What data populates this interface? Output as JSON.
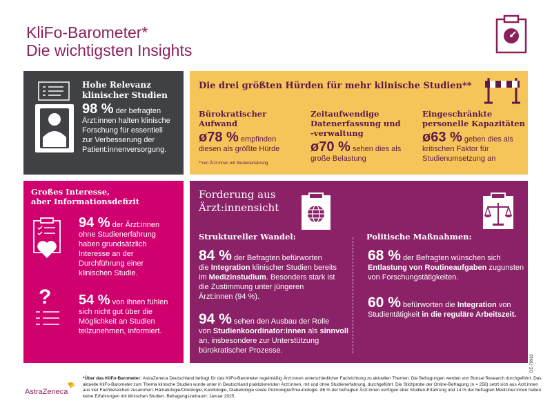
{
  "title": {
    "line1": "KliFo-Barometer*",
    "line2": "Die wichtigsten Insights"
  },
  "relevance": {
    "heading_line1": "Hohe Relevanz",
    "heading_line2": "klinischer Studien",
    "percent": "98 %",
    "text_1": "der befragten",
    "text_2": "Ärzt:innen halten klinische",
    "text_3": "Forschung für essentiell",
    "text_4": "zur Verbesserung der",
    "text_5": "Patient:innenversorgung."
  },
  "hurdles": {
    "heading": "Die drei größten Hürden für mehr klinische Studien**",
    "footnote": "**von Ärzt:innen mit Studienerfahrung",
    "items": [
      {
        "title_1": "Bürokratischer Aufwand",
        "title_2": "",
        "title_3": "",
        "value": "ø78 %",
        "text_1": "empfinden",
        "text_2": "diesen als größte Hürde"
      },
      {
        "title_1": "Zeitaufwendige",
        "title_2": "Datenerfassung und",
        "title_3": "-verwaltung",
        "value": "ø70 %",
        "text_1": "sehen dies als",
        "text_2": "große Belastung"
      },
      {
        "title_1": "Eingeschränkte",
        "title_2": "personelle Kapazitäten",
        "title_3": "",
        "value": "ø63 %",
        "text_1": "geben dies als",
        "text_2": "kritischen Faktor für",
        "text_3": "Studienumsetzung an"
      }
    ]
  },
  "interest": {
    "heading_line1": "Großes Interesse,",
    "heading_line2": "aber Informationsdefizit",
    "stat1_value": "94 %",
    "stat1_1": "der Ärzt:innen",
    "stat1_2": "ohne Studienerfahrung",
    "stat1_3": "haben grundsätzlich",
    "stat1_4": "Interesse an der",
    "stat1_5": "Durchführung einer",
    "stat1_6": "klinischen Studie.",
    "stat2_value": "54 %",
    "stat2_1": "von ihnen fühlen",
    "stat2_2": "sich nicht gut über die",
    "stat2_3": "Möglichkeit an Studien",
    "stat2_4": "teilzunehmen, informiert."
  },
  "demands": {
    "heading_line1": "Forderung aus",
    "heading_line2": "Ärzt:innensicht",
    "left_heading": "Struktureller Wandel:",
    "right_heading": "Politische Maßnahmen:",
    "l1_value": "84 %",
    "l1_a": "der Befragten befürworten",
    "l1_b": "die",
    "l1_b_bold": "Integration",
    "l1_b2": "klinischer Studien bereits",
    "l1_c": "im",
    "l1_c_bold": "Medizinstudium",
    "l1_c2": ". Besonders stark ist",
    "l1_d": "die Zustimmung unter jüngeren",
    "l1_e": "Ärzt:innen (94 %).",
    "l2_value": "94 %",
    "l2_a": "sehen den Ausbau der Rolle",
    "l2_b": "von",
    "l2_b_bold": "Studienkoordinator:innen",
    "l2_b2": "als",
    "l2_b_bold2": "sinnvoll",
    "l2_c": "an, insbesondere zur Unterstützung",
    "l2_d": "bürokratischer Prozesse.",
    "r1_value": "68 %",
    "r1_a": "der Befragten wünschen sich",
    "r1_b_bold": "Entlastung von Routineaufgaben",
    "r1_b2": "zugunsten",
    "r1_c": "von Forschungstätigkeiten.",
    "r2_value": "60 %",
    "r2_a": "befürworten die",
    "r2_a_bold": "Integration",
    "r2_a2": "von",
    "r2_b": "Studientätigkeit",
    "r2_b_bold": "in die reguläre Arbeitszeit."
  },
  "footer": {
    "label": "*Über das KliFo-Barometer:",
    "text": "AstraZeneca Deutschland befragt für das KliFo-Barometer regelmäßig Ärzt:innen unterschiedlicher Fachrichtung zu aktuellen Themen. Die Befragungen werden von Bonsai Research durchgeführt. Das aktuelle KliFo-Barometer zum Thema klinische Studien wurde unter in Deutschland praktizierenden Ärzt:innen, mit und ohne Studienerfahrung, durchgeführt. Die Stichprobe der Online-Befragung (n = 258) setzt sich aus Ärzt:innen aus vier Fachbereichen zusammen: Hämatologie/Onkologie, Kardiologie, Diabetologie sowie Pulmologie/Pneumologie. 86 % der befragten Ärzt:innen verfügen über Studien-Erfahrung und 14 % der befragten Mediziner:innen haben keine Erfahrungen mit klinischen Studien. Befragungszeitraum: Januar 2025.",
    "logo_text": "AstraZeneca",
    "code": "DE-79962"
  }
}
